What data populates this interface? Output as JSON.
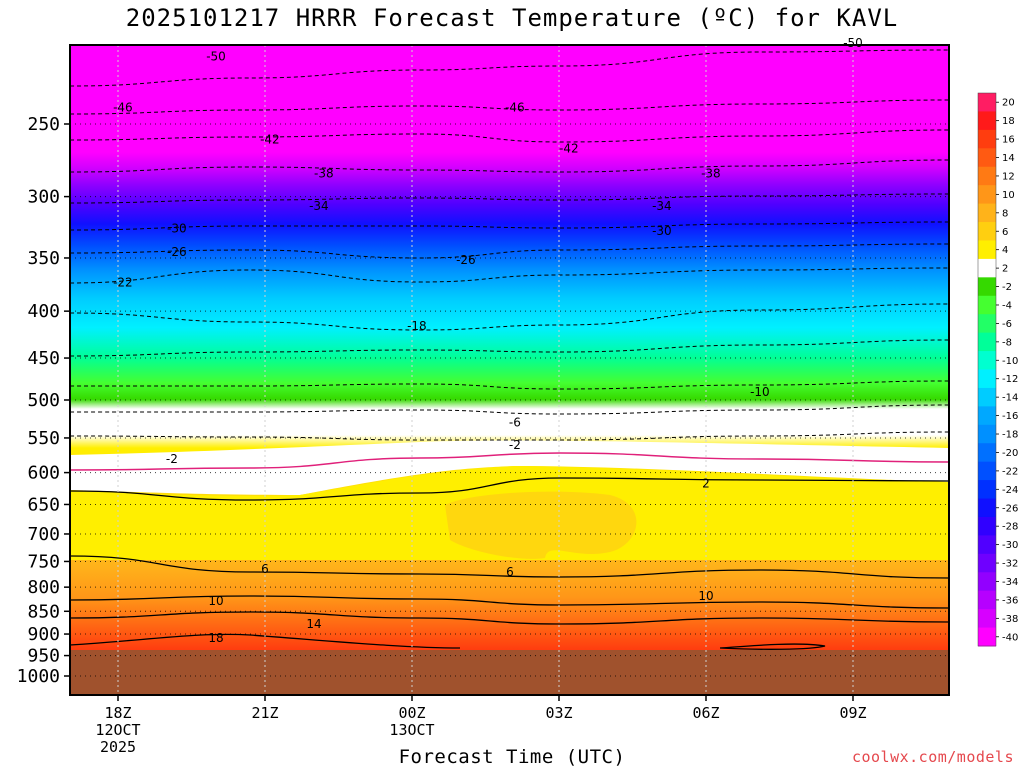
{
  "chart_data": {
    "type": "heatmap",
    "title": "2025101217 HRRR Forecast Temperature (ºC) for KAVL",
    "xlabel": "Forecast Time (UTC)",
    "ylabel": "",
    "y_scale": "log-pressure",
    "y_ticks": [
      250,
      300,
      350,
      400,
      450,
      500,
      550,
      600,
      650,
      700,
      750,
      800,
      850,
      900,
      950,
      1000
    ],
    "x_ticks": [
      {
        "label": "18Z",
        "sub1": "12OCT",
        "sub2": "2025",
        "hour": 18
      },
      {
        "label": "21Z",
        "sub1": "",
        "sub2": "",
        "hour": 21
      },
      {
        "label": "00Z",
        "sub1": "13OCT",
        "sub2": "",
        "hour": 24
      },
      {
        "label": "03Z",
        "sub1": "",
        "sub2": "",
        "hour": 27
      },
      {
        "label": "06Z",
        "sub1": "",
        "sub2": "",
        "hour": 30
      },
      {
        "label": "09Z",
        "sub1": "",
        "sub2": "",
        "hour": 33
      }
    ],
    "surface_pressure_hpa": 940,
    "colorbar_values": [
      20,
      18,
      16,
      14,
      12,
      10,
      8,
      6,
      4,
      2,
      -2,
      -4,
      -6,
      -8,
      -10,
      -12,
      -14,
      -16,
      -18,
      -20,
      -22,
      -24,
      -26,
      -28,
      -30,
      -32,
      -34,
      -36,
      -38,
      -40
    ],
    "colorbar_colors": [
      "#ff1d63",
      "#ff1a1a",
      "#ff3d0f",
      "#ff5a12",
      "#ff7a14",
      "#ff9618",
      "#ffb31a",
      "#ffcf10",
      "#ffef00",
      "#ffffff",
      "#35d900",
      "#45ff30",
      "#22ff66",
      "#00ff99",
      "#00ffd0",
      "#00f0ff",
      "#00ccff",
      "#00a8ff",
      "#0090ff",
      "#0070ff",
      "#0050ff",
      "#0030ff",
      "#1010ff",
      "#3000ff",
      "#5000ff",
      "#6f00ff",
      "#9200ff",
      "#b600ff",
      "#d700ff",
      "#ff00ff"
    ],
    "contour_labels": [
      {
        "text": "-50",
        "hour": 20.0,
        "p": 211
      },
      {
        "text": "-50",
        "hour": 33.0,
        "p": 204
      },
      {
        "text": "-46",
        "hour": 18.1,
        "p": 240
      },
      {
        "text": "-46",
        "hour": 26.1,
        "p": 240
      },
      {
        "text": "-42",
        "hour": 21.1,
        "p": 260
      },
      {
        "text": "-42",
        "hour": 27.2,
        "p": 266
      },
      {
        "text": "-38",
        "hour": 22.2,
        "p": 283
      },
      {
        "text": "-38",
        "hour": 30.1,
        "p": 283
      },
      {
        "text": "-34",
        "hour": 22.1,
        "p": 307
      },
      {
        "text": "-34",
        "hour": 29.1,
        "p": 307
      },
      {
        "text": "-30",
        "hour": 19.2,
        "p": 325
      },
      {
        "text": "-30",
        "hour": 29.1,
        "p": 327
      },
      {
        "text": "-26",
        "hour": 19.2,
        "p": 345
      },
      {
        "text": "-26",
        "hour": 25.1,
        "p": 352
      },
      {
        "text": "-22",
        "hour": 18.1,
        "p": 372
      },
      {
        "text": "-18",
        "hour": 24.1,
        "p": 415
      },
      {
        "text": "-10",
        "hour": 31.1,
        "p": 490
      },
      {
        "text": "-6",
        "hour": 26.1,
        "p": 529
      },
      {
        "text": "-2",
        "hour": 26.1,
        "p": 560
      },
      {
        "text": "-2",
        "hour": 19.1,
        "p": 580
      },
      {
        "text": "2",
        "hour": 30.0,
        "p": 617
      },
      {
        "text": "6",
        "hour": 21.0,
        "p": 764
      },
      {
        "text": "6",
        "hour": 26.0,
        "p": 770
      },
      {
        "text": "10",
        "hour": 20.0,
        "p": 828
      },
      {
        "text": "10",
        "hour": 30.0,
        "p": 818
      },
      {
        "text": "14",
        "hour": 22.0,
        "p": 878
      },
      {
        "text": "18",
        "hour": 20.0,
        "p": 909
      }
    ],
    "grid": true,
    "legend": "colorbar-right",
    "credit": "coolwx.com/models"
  }
}
